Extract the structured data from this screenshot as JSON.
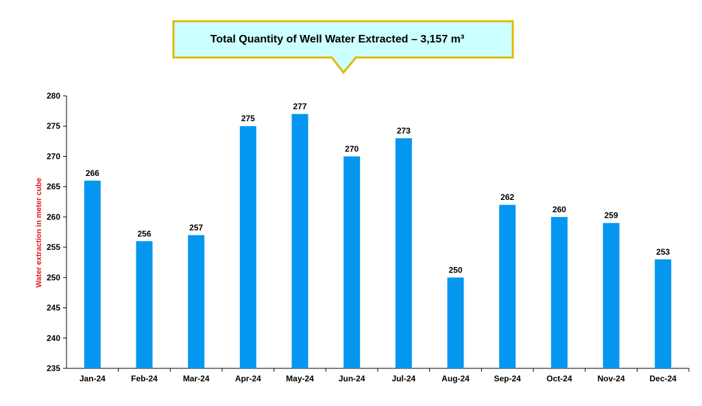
{
  "chart_data": {
    "type": "bar",
    "title": "Total Quantity of Well Water Extracted – 3,157 m³",
    "ylabel": "Water extraction in meter cube",
    "xlabel": "",
    "categories": [
      "Jan-24",
      "Feb-24",
      "Mar-24",
      "Apr-24",
      "May-24",
      "Jun-24",
      "Jul-24",
      "Aug-24",
      "Sep-24",
      "Oct-24",
      "Nov-24",
      "Dec-24"
    ],
    "values": [
      266,
      256,
      257,
      275,
      277,
      270,
      273,
      250,
      262,
      260,
      259,
      253
    ],
    "ylim": [
      235,
      280
    ],
    "yticks": [
      235,
      240,
      245,
      250,
      255,
      260,
      265,
      270,
      275,
      280
    ],
    "grid": false,
    "legend": "none",
    "colors": {
      "bar": "#0596F0",
      "ylabel": "#E8141C",
      "callout_fill": "#CCFFFF",
      "callout_border": "#E6B800"
    }
  }
}
